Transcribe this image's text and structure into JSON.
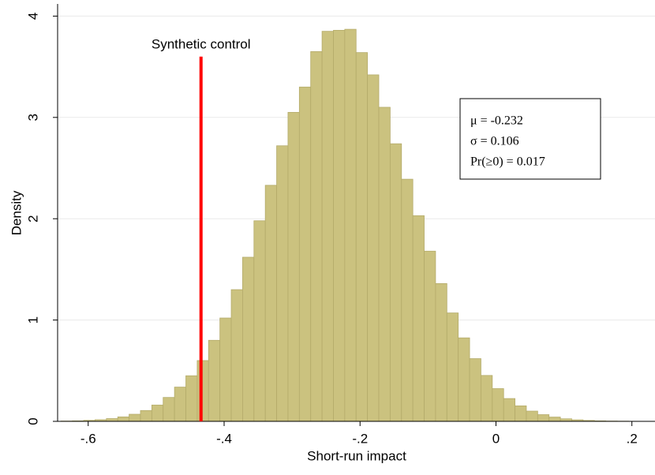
{
  "chart_data": {
    "type": "histogram",
    "xlabel": "Short-run impact",
    "ylabel": "Density",
    "bins": [
      -0.64,
      -0.6233,
      -0.6066,
      -0.5899,
      -0.5732,
      -0.5565,
      -0.5398,
      -0.5231,
      -0.5064,
      -0.4897,
      -0.473,
      -0.4563,
      -0.4396,
      -0.4229,
      -0.4062,
      -0.3895,
      -0.3728,
      -0.3561,
      -0.3394,
      -0.3227,
      -0.306,
      -0.2893,
      -0.2726,
      -0.2559,
      -0.2392,
      -0.2225,
      -0.2058,
      -0.1891,
      -0.1724,
      -0.1557,
      -0.139,
      -0.1223,
      -0.1056,
      -0.0889,
      -0.0722,
      -0.0555,
      -0.0388,
      -0.0221,
      -0.0054,
      0.0113,
      0.028,
      0.0447,
      0.0614,
      0.0781,
      0.0948,
      0.1115,
      0.1282,
      0.1449,
      0.1616,
      0.1783,
      0.195,
      0.2117
    ],
    "values": [
      0.003,
      0.005,
      0.01,
      0.016,
      0.027,
      0.044,
      0.07,
      0.107,
      0.161,
      0.236,
      0.338,
      0.45,
      0.6,
      0.8,
      1.02,
      1.3,
      1.62,
      1.98,
      2.33,
      2.72,
      3.05,
      3.3,
      3.65,
      3.85,
      3.86,
      3.87,
      3.64,
      3.42,
      3.1,
      2.74,
      2.39,
      2.03,
      1.68,
      1.36,
      1.07,
      0.824,
      0.619,
      0.453,
      0.323,
      0.225,
      0.153,
      0.101,
      0.066,
      0.042,
      0.025,
      0.015,
      0.009,
      0.005,
      0.003,
      0.002,
      0.001
    ],
    "color": "#cbc27f",
    "xlim": [
      -0.645,
      0.234
    ],
    "ylim": [
      0,
      4.12
    ],
    "xticks": [
      {
        "value": -0.6,
        "label": "-.6"
      },
      {
        "value": -0.4,
        "label": "-.4"
      },
      {
        "value": -0.2,
        "label": "-.2"
      },
      0,
      {
        "value": 0.2,
        "label": ".2"
      }
    ],
    "yticks": [
      0,
      1,
      2,
      3,
      4
    ],
    "grid": true,
    "vline": {
      "x": -0.434,
      "ymax": 3.6,
      "color": "#ff0000",
      "label": "Synthetic control"
    },
    "stats": [
      "μ = -0.232",
      "σ = 0.106",
      "Pr(≥0) = 0.017"
    ]
  }
}
